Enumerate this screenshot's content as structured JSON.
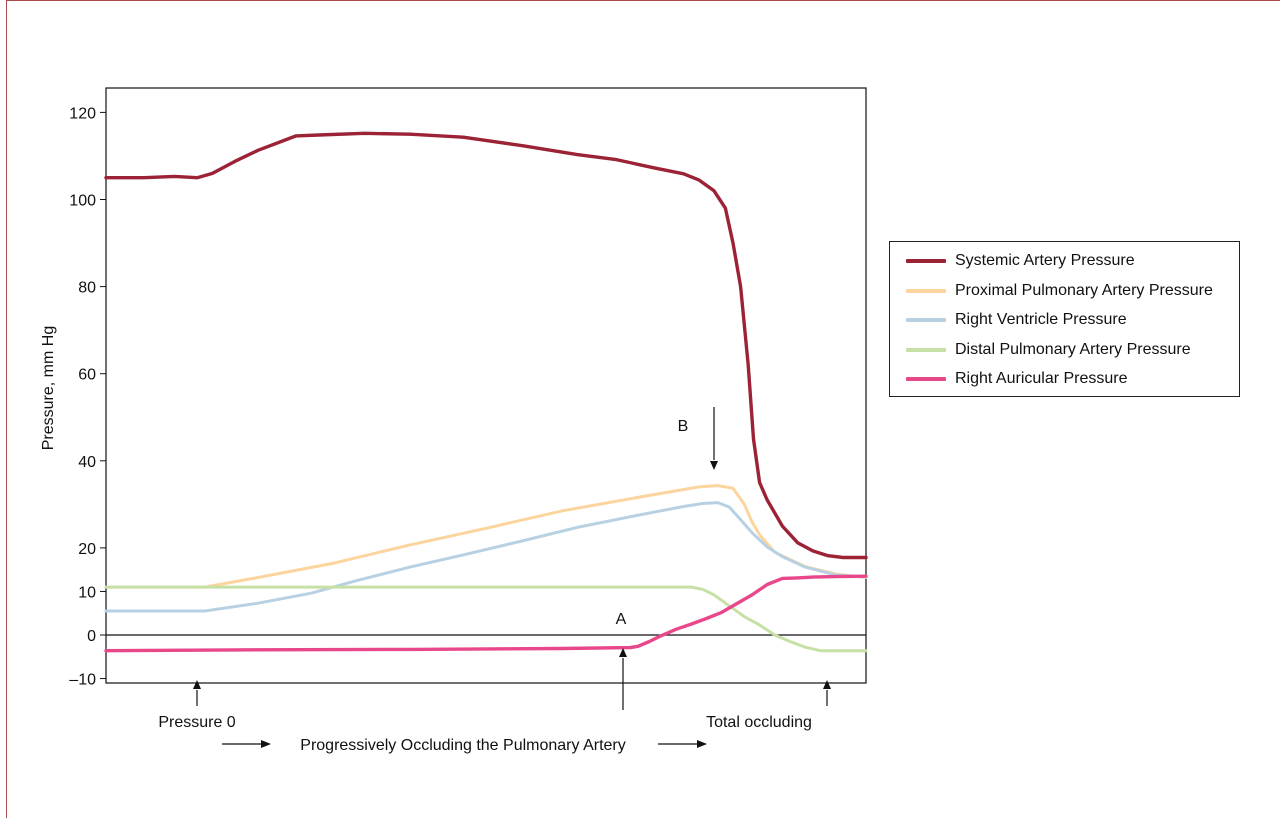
{
  "chart_data": {
    "type": "line",
    "ylabel": "Pressure, mm Hg",
    "yticks": [
      120,
      100,
      80,
      60,
      40,
      20,
      10,
      0,
      -10
    ],
    "ytick_labels": [
      "120",
      "100",
      "80",
      "60",
      "40",
      "20",
      "10",
      "0",
      "–10"
    ],
    "ylim": [
      -10,
      122
    ],
    "xlim": [
      0,
      100
    ],
    "zero_line": true,
    "series": [
      {
        "name": "Systemic Artery Pressure",
        "color": "#9b2335",
        "points": [
          [
            0,
            105
          ],
          [
            5,
            105
          ],
          [
            9,
            105.3
          ],
          [
            12,
            105
          ],
          [
            14,
            106
          ],
          [
            17,
            108.8
          ],
          [
            20,
            111.3
          ],
          [
            25,
            114.6
          ],
          [
            28,
            114.8
          ],
          [
            34,
            115.2
          ],
          [
            40,
            115
          ],
          [
            47,
            114.3
          ],
          [
            55,
            112.3
          ],
          [
            62,
            110.3
          ],
          [
            67,
            109.2
          ],
          [
            72,
            107.3
          ],
          [
            76,
            105.9
          ],
          [
            78,
            104.5
          ],
          [
            80,
            102
          ],
          [
            81.5,
            98
          ],
          [
            82.5,
            90
          ],
          [
            83.5,
            80
          ],
          [
            84.5,
            62
          ],
          [
            85.2,
            45
          ],
          [
            86,
            35
          ],
          [
            87,
            31
          ],
          [
            89,
            25
          ],
          [
            91,
            21.2
          ],
          [
            93,
            19.3
          ],
          [
            95,
            18.2
          ],
          [
            97,
            17.8
          ],
          [
            100,
            17.8
          ]
        ]
      },
      {
        "name": "Proximal Pulmonary Artery Pressure",
        "color": "#fcd49d",
        "points": [
          [
            0,
            11
          ],
          [
            13,
            11
          ],
          [
            20,
            13.2
          ],
          [
            30,
            16.5
          ],
          [
            40,
            20.7
          ],
          [
            50,
            24.5
          ],
          [
            60,
            28.5
          ],
          [
            70,
            31.6
          ],
          [
            78,
            34
          ],
          [
            80.5,
            34.3
          ],
          [
            82.5,
            33.7
          ],
          [
            84,
            30
          ],
          [
            85,
            26
          ],
          [
            86,
            23
          ],
          [
            88,
            19
          ],
          [
            92,
            15.7
          ],
          [
            96,
            14
          ],
          [
            100,
            13.2
          ]
        ]
      },
      {
        "name": "Right Ventricle Pressure",
        "color": "#b7d1e3",
        "points": [
          [
            0,
            5.5
          ],
          [
            13,
            5.5
          ],
          [
            20,
            7.3
          ],
          [
            27,
            9.6
          ],
          [
            33,
            12.5
          ],
          [
            40,
            15.6
          ],
          [
            47,
            18.4
          ],
          [
            55,
            21.7
          ],
          [
            62,
            24.7
          ],
          [
            70,
            27.5
          ],
          [
            76,
            29.5
          ],
          [
            78.5,
            30.2
          ],
          [
            80.5,
            30.4
          ],
          [
            82,
            29.4
          ],
          [
            83.5,
            26.5
          ],
          [
            85,
            23.5
          ],
          [
            87,
            20.2
          ],
          [
            89,
            18
          ],
          [
            92,
            15.6
          ],
          [
            96,
            13.8
          ],
          [
            100,
            13.3
          ]
        ]
      },
      {
        "name": "Distal Pulmonary Artery Pressure",
        "color": "#c7e0a6",
        "points": [
          [
            0,
            11
          ],
          [
            77,
            11
          ],
          [
            78.5,
            10.5
          ],
          [
            80,
            9.2
          ],
          [
            82,
            6.7
          ],
          [
            84,
            4.2
          ],
          [
            86,
            2.3
          ],
          [
            88,
            0
          ],
          [
            90,
            -1.5
          ],
          [
            92,
            -2.8
          ],
          [
            94,
            -3.6
          ],
          [
            100,
            -3.6
          ]
        ]
      },
      {
        "name": "Right Auricular Pressure",
        "color": "#e8488a",
        "points": [
          [
            0,
            -3.6
          ],
          [
            20,
            -3.4
          ],
          [
            40,
            -3.3
          ],
          [
            60,
            -3.1
          ],
          [
            69,
            -2.9
          ],
          [
            70,
            -2.6
          ],
          [
            71.5,
            -1.5
          ],
          [
            73,
            -0.2
          ],
          [
            75,
            1.3
          ],
          [
            77,
            2.5
          ],
          [
            79,
            3.8
          ],
          [
            81,
            5.2
          ],
          [
            83,
            7.2
          ],
          [
            85,
            9.2
          ],
          [
            87,
            11.6
          ],
          [
            89,
            13
          ],
          [
            91,
            13.1
          ],
          [
            93,
            13.3
          ],
          [
            96,
            13.4
          ],
          [
            100,
            13.5
          ]
        ]
      }
    ],
    "annotations": [
      {
        "text": "A"
      },
      {
        "text": "B"
      },
      {
        "text": "Pressure 0"
      },
      {
        "text": "Total occluding"
      },
      {
        "text": "Progressively Occluding the Pulmonary Artery"
      }
    ]
  }
}
